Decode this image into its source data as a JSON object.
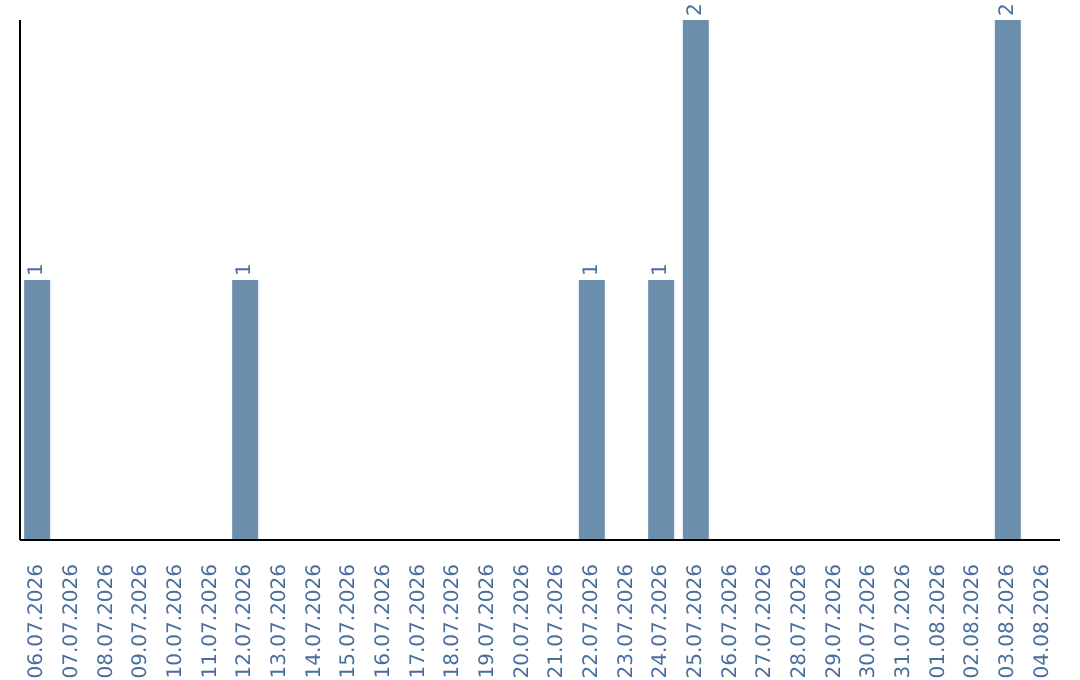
{
  "chart_data": {
    "type": "bar",
    "categories": [
      "06.07.2026",
      "07.07.2026",
      "08.07.2026",
      "09.07.2026",
      "10.07.2026",
      "11.07.2026",
      "12.07.2026",
      "13.07.2026",
      "14.07.2026",
      "15.07.2026",
      "16.07.2026",
      "17.07.2026",
      "18.07.2026",
      "19.07.2026",
      "20.07.2026",
      "21.07.2026",
      "22.07.2026",
      "23.07.2026",
      "24.07.2026",
      "25.07.2026",
      "26.07.2026",
      "27.07.2026",
      "28.07.2026",
      "29.07.2026",
      "30.07.2026",
      "31.07.2026",
      "01.08.2026",
      "02.08.2026",
      "03.08.2026",
      "04.08.2026"
    ],
    "values": [
      1,
      null,
      null,
      null,
      null,
      null,
      1,
      null,
      null,
      null,
      null,
      null,
      null,
      null,
      null,
      null,
      1,
      null,
      1,
      2,
      null,
      null,
      null,
      null,
      null,
      null,
      null,
      null,
      2,
      null
    ],
    "color": "#6d8fae",
    "data_labels": true,
    "grid": false,
    "legend": false
  }
}
